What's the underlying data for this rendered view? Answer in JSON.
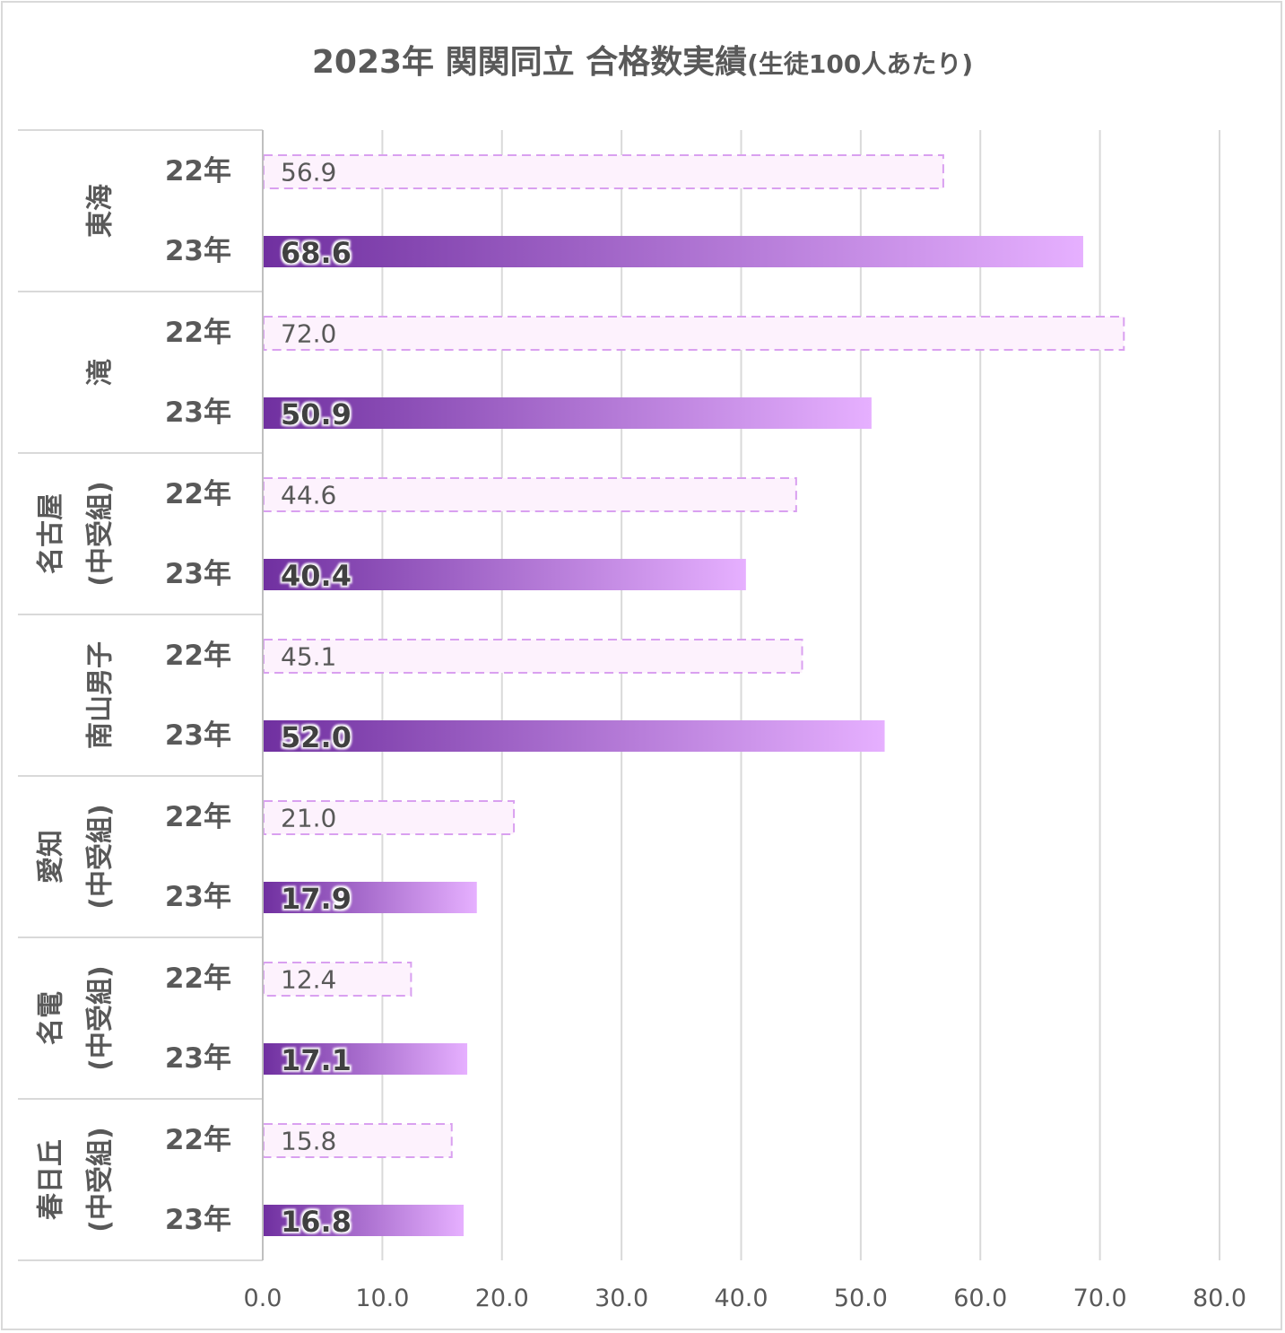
{
  "chart_data": {
    "type": "bar",
    "orientation": "horizontal",
    "title": "2023年 関関同立 合格数実績",
    "subtitle": "(生徒100人あたり)",
    "groups": [
      {
        "label": [
          "東海"
        ],
        "rows": [
          {
            "year": "22年",
            "value": 56.9,
            "label": "56.9"
          },
          {
            "year": "23年",
            "value": 68.6,
            "label": "68.6"
          }
        ]
      },
      {
        "label": [
          "滝"
        ],
        "rows": [
          {
            "year": "22年",
            "value": 72.0,
            "label": "72.0"
          },
          {
            "year": "23年",
            "value": 50.9,
            "label": "50.9"
          }
        ]
      },
      {
        "label": [
          "名古屋",
          "(中受組)"
        ],
        "rows": [
          {
            "year": "22年",
            "value": 44.6,
            "label": "44.6"
          },
          {
            "year": "23年",
            "value": 40.4,
            "label": "40.4"
          }
        ]
      },
      {
        "label": [
          "南山男子"
        ],
        "rows": [
          {
            "year": "22年",
            "value": 45.1,
            "label": "45.1"
          },
          {
            "year": "23年",
            "value": 52.0,
            "label": "52.0"
          }
        ]
      },
      {
        "label": [
          "愛知",
          "(中受組)"
        ],
        "rows": [
          {
            "year": "22年",
            "value": 21.0,
            "label": "21.0"
          },
          {
            "year": "23年",
            "value": 17.9,
            "label": "17.9"
          }
        ]
      },
      {
        "label": [
          "名電",
          "(中受組)"
        ],
        "rows": [
          {
            "year": "22年",
            "value": 12.4,
            "label": "12.4"
          },
          {
            "year": "23年",
            "value": 17.1,
            "label": "17.1"
          }
        ]
      },
      {
        "label": [
          "春日丘",
          "(中受組)"
        ],
        "rows": [
          {
            "year": "22年",
            "value": 15.8,
            "label": "15.8"
          },
          {
            "year": "23年",
            "value": 16.8,
            "label": "16.8"
          }
        ]
      }
    ],
    "xlim": [
      0,
      80
    ],
    "xticks": [
      "0.0",
      "10.0",
      "20.0",
      "30.0",
      "40.0",
      "50.0",
      "60.0",
      "70.0",
      "80.0"
    ],
    "grid": true,
    "legend": "none",
    "colors": {
      "bar22_fill": "#fdf2fd",
      "bar22_border": "#d9a0f0",
      "bar23_start": "#7030a0",
      "bar23_end": "#e6b0ff",
      "grid": "#d9d9d9",
      "text": "#595959"
    }
  }
}
